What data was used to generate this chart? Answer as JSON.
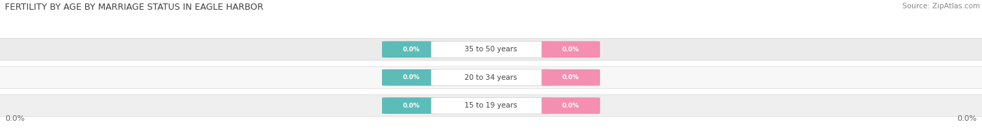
{
  "title": "FERTILITY BY AGE BY MARRIAGE STATUS IN EAGLE HARBOR",
  "source": "Source: ZipAtlas.com",
  "age_groups": [
    "15 to 19 years",
    "20 to 34 years",
    "35 to 50 years"
  ],
  "married_values": [
    "0.0%",
    "0.0%",
    "0.0%"
  ],
  "unmarried_values": [
    "0.0%",
    "0.0%",
    "0.0%"
  ],
  "married_color": "#5bbcb8",
  "unmarried_color": "#f48fb1",
  "row_bg_colors": [
    "#efefef",
    "#f7f7f7",
    "#ebebeb"
  ],
  "title_fontsize": 9,
  "source_fontsize": 7.5,
  "axis_tick_fontsize": 8,
  "legend_fontsize": 8.5,
  "figsize": [
    14.06,
    1.96
  ],
  "dpi": 100
}
